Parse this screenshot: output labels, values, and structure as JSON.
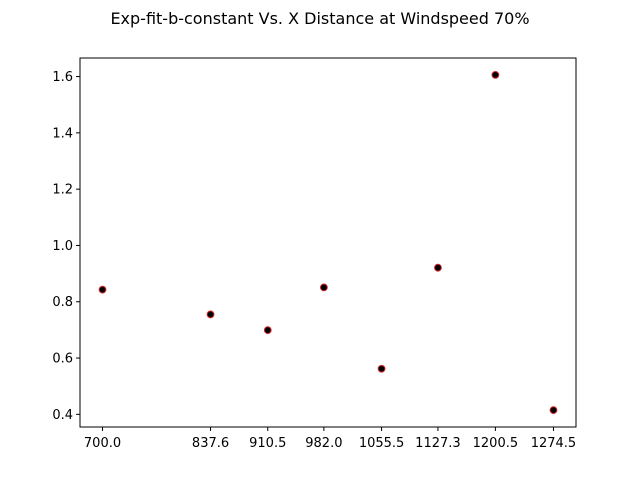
{
  "chart_data": {
    "type": "scatter",
    "title": "Exp-fit-b-constant Vs. X Distance at Windspeed 70%",
    "xlabel": "",
    "ylabel": "",
    "x": [
      700.0,
      837.6,
      910.5,
      982.0,
      1055.5,
      1127.3,
      1200.5,
      1274.5
    ],
    "y": [
      0.843,
      0.755,
      0.699,
      0.851,
      0.562,
      0.921,
      1.606,
      0.415
    ],
    "x_ticks": [
      "700.0",
      "837.6",
      "910.5",
      "982.0",
      "1055.5",
      "1127.3",
      "1200.5",
      "1274.5"
    ],
    "y_ticks": [
      "0.4",
      "0.6",
      "0.8",
      "1.0",
      "1.2",
      "1.4",
      "1.6"
    ],
    "xlim": [
      671.3,
      1303.2
    ],
    "ylim": [
      0.355,
      1.666
    ],
    "grid": false,
    "marker_face_color": "#000000",
    "marker_edge_color": "#d62728"
  }
}
